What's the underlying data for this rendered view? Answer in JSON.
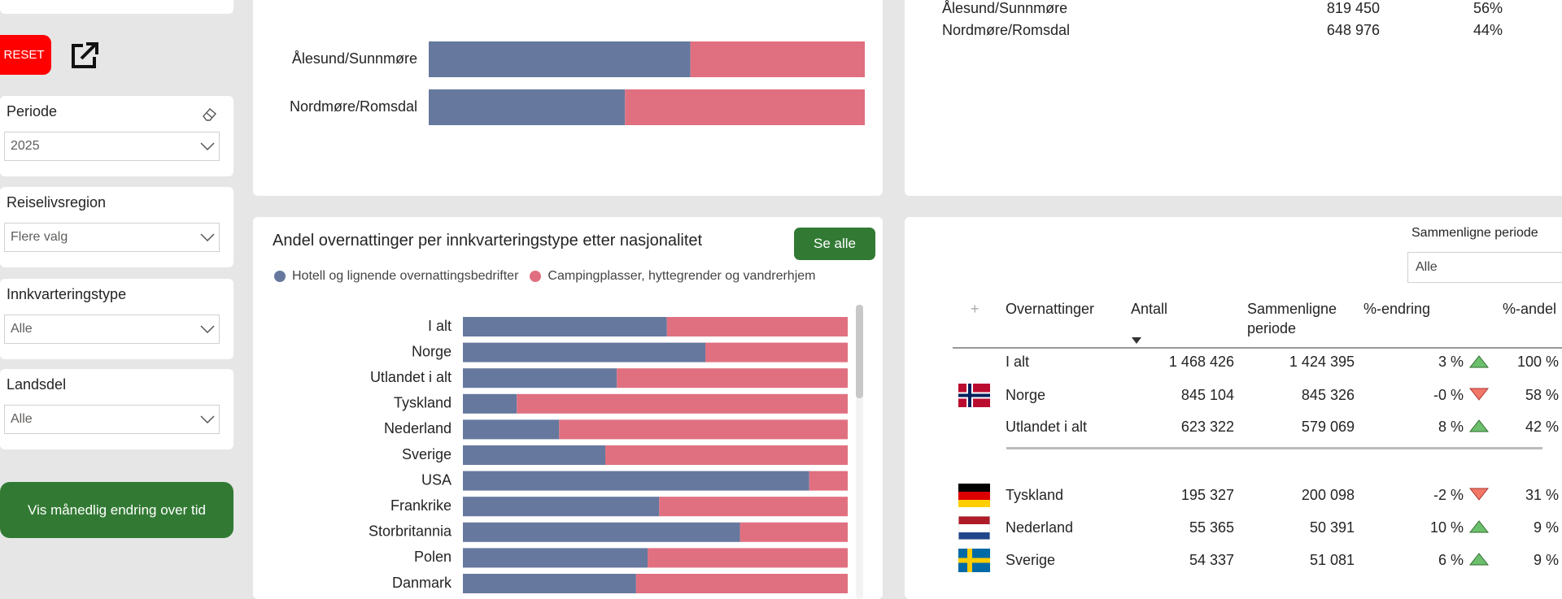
{
  "sidebar": {
    "reset": "RESET",
    "filters": [
      {
        "label": "Periode",
        "value": "2025"
      },
      {
        "label": "Reiselivsregion",
        "value": "Flere valg"
      },
      {
        "label": "Innkvarteringstype",
        "value": "Alle"
      },
      {
        "label": "Landsdel",
        "value": "Alle"
      }
    ],
    "button": "Vis månedlig endring over tid"
  },
  "chart_data": [
    {
      "type": "bar",
      "orientation": "horizontal",
      "stacked": true,
      "categories": [
        "Ålesund/Sunnmøre",
        "Nordmøre/Romsdal"
      ],
      "series": [
        {
          "color": "#66789e",
          "values": [
            60,
            45
          ]
        },
        {
          "color": "#e07080",
          "values": [
            40,
            55
          ]
        }
      ],
      "xlim": [
        0,
        100
      ]
    },
    {
      "type": "bar",
      "orientation": "horizontal",
      "stacked": true,
      "title": "Andel overnattinger per innkvarteringstype etter nasjonalitet",
      "categories": [
        "I alt",
        "Norge",
        "Utlandet i alt",
        "Tyskland",
        "Nederland",
        "Sverige",
        "USA",
        "Frankrike",
        "Storbritannia",
        "Polen",
        "Danmark"
      ],
      "series": [
        {
          "name": "Hotell og lignende overnattingsbedrifter",
          "color": "#66789e",
          "values": [
            53,
            63,
            40,
            14,
            25,
            37,
            90,
            51,
            72,
            48,
            45
          ]
        },
        {
          "name": "Campingplasser, hyttegrender og vandrerhjem",
          "color": "#e07080",
          "values": [
            47,
            37,
            60,
            86,
            75,
            63,
            10,
            49,
            28,
            52,
            55
          ]
        }
      ],
      "xlim": [
        0,
        100
      ]
    }
  ],
  "chart_button": "Se alle",
  "region_table": {
    "rows": [
      [
        "Ålesund/Sunnmøre",
        "819 450",
        "56%"
      ],
      [
        "Nordmøre/Romsdal",
        "648 976",
        "44%"
      ]
    ]
  },
  "nationality_table": {
    "compare_label": "Sammenligne periode",
    "compare_value": "Alle",
    "expand": "+",
    "headers": [
      "Overnattinger",
      "Antall",
      "Sammenligne periode",
      "%-endring",
      "%-andel"
    ],
    "rows": [
      [
        "I alt",
        "1 468 426",
        "1 424 395",
        "3 %",
        "100 %"
      ],
      [
        "Norge",
        "845 104",
        "845 326",
        "-0 %",
        "58 %"
      ],
      [
        "Utlandet i alt",
        "623 322",
        "579 069",
        "8 %",
        "42 %"
      ],
      [
        "Tyskland",
        "195 327",
        "200 098",
        "-2 %",
        "31 %"
      ],
      [
        "Nederland",
        "55 365",
        "50 391",
        "10 %",
        "9 %"
      ],
      [
        "Sverige",
        "54 337",
        "51 081",
        "6 %",
        "9 %"
      ]
    ]
  }
}
